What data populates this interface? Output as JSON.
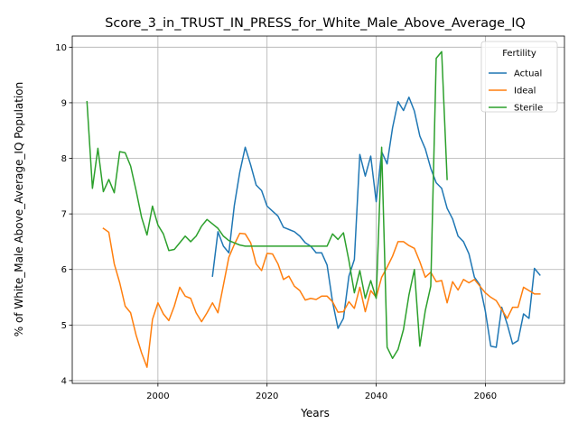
{
  "chart_data": {
    "type": "line",
    "title": "Score_3_in_TRUST_IN_PRESS_for_White_Male_Above_Average_IQ",
    "xlabel": "Years",
    "ylabel": "% of White_Male Above_Average_IQ Population",
    "xlim": [
      2084.5,
      2074.5
    ],
    "ylim": [
      3.95,
      10.2
    ],
    "xlim_note": "",
    "x_range": [
      1984.3,
      2074.5
    ],
    "xticks": [
      2000,
      2020,
      2040,
      2060
    ],
    "yticks": [
      4,
      5,
      6,
      7,
      8,
      9,
      10
    ],
    "grid": true,
    "legend": {
      "title": "Fertility",
      "position": "top-right"
    },
    "series": [
      {
        "name": "Actual",
        "color": "#1f77b4",
        "x": [
          2010,
          2011,
          2012,
          2013,
          2014,
          2015,
          2016,
          2017,
          2018,
          2019,
          2020,
          2021,
          2022,
          2023,
          2024,
          2025,
          2026,
          2027,
          2028,
          2029,
          2030,
          2031,
          2032,
          2033,
          2034,
          2035,
          2036,
          2037,
          2038,
          2039,
          2040,
          2041,
          2042,
          2043,
          2044,
          2045,
          2046,
          2047,
          2048,
          2049,
          2050,
          2051,
          2052,
          2053,
          2054,
          2055,
          2056,
          2057,
          2058,
          2059,
          2060,
          2061,
          2062,
          2063,
          2064,
          2065,
          2066,
          2067,
          2068,
          2069,
          2070
        ],
        "y": [
          5.88,
          6.68,
          6.42,
          6.3,
          7.15,
          7.75,
          8.2,
          7.88,
          7.52,
          7.42,
          7.14,
          7.05,
          6.96,
          6.76,
          6.72,
          6.68,
          6.6,
          6.48,
          6.42,
          6.3,
          6.3,
          6.08,
          5.42,
          4.94,
          5.12,
          5.88,
          6.18,
          8.07,
          7.68,
          8.04,
          7.22,
          8.12,
          7.9,
          8.55,
          9.02,
          8.86,
          9.1,
          8.85,
          8.4,
          8.17,
          7.82,
          7.56,
          7.46,
          7.1,
          6.91,
          6.6,
          6.5,
          6.28,
          5.86,
          5.72,
          5.25,
          4.62,
          4.6,
          5.32,
          5.02,
          4.66,
          4.72,
          5.2,
          5.12,
          6.02,
          5.9
        ]
      },
      {
        "name": "Ideal",
        "color": "#ff7f0e",
        "x": [
          1990,
          1991,
          1992,
          1993,
          1994,
          1995,
          1996,
          1997,
          1998,
          1999,
          2000,
          2001,
          2002,
          2003,
          2004,
          2005,
          2006,
          2007,
          2008,
          2009,
          2010,
          2011,
          2012,
          2013,
          2014,
          2015,
          2016,
          2017,
          2018,
          2019,
          2020,
          2021,
          2022,
          2023,
          2024,
          2025,
          2026,
          2027,
          2028,
          2029,
          2030,
          2031,
          2032,
          2033,
          2034,
          2035,
          2036,
          2037,
          2038,
          2039,
          2040,
          2041,
          2042,
          2043,
          2044,
          2045,
          2046,
          2047,
          2048,
          2049,
          2050,
          2051,
          2052,
          2053,
          2054,
          2055,
          2056,
          2057,
          2058,
          2059,
          2060,
          2061,
          2062,
          2063,
          2064,
          2065,
          2066,
          2067,
          2068,
          2069,
          2070
        ],
        "y": [
          6.74,
          6.67,
          6.1,
          5.76,
          5.34,
          5.22,
          4.82,
          4.5,
          4.24,
          5.1,
          5.4,
          5.2,
          5.08,
          5.34,
          5.68,
          5.52,
          5.48,
          5.22,
          5.06,
          5.22,
          5.4,
          5.22,
          5.72,
          6.22,
          6.45,
          6.65,
          6.64,
          6.48,
          6.1,
          5.98,
          6.29,
          6.28,
          6.1,
          5.82,
          5.88,
          5.7,
          5.62,
          5.45,
          5.48,
          5.46,
          5.52,
          5.52,
          5.42,
          5.23,
          5.24,
          5.42,
          5.3,
          5.68,
          5.24,
          5.62,
          5.5,
          5.86,
          6.04,
          6.24,
          6.5,
          6.5,
          6.43,
          6.38,
          6.14,
          5.86,
          5.95,
          5.78,
          5.8,
          5.4,
          5.78,
          5.63,
          5.82,
          5.76,
          5.82,
          5.7,
          5.58,
          5.5,
          5.44,
          5.28,
          5.12,
          5.32,
          5.32,
          5.68,
          5.62,
          5.56,
          5.56
        ]
      },
      {
        "name": "Sterile",
        "color": "#2ca02c",
        "x": [
          1987,
          1988,
          1989,
          1990,
          1991,
          1992,
          1993,
          1994,
          1995,
          1996,
          1997,
          1998,
          1999,
          2000,
          2001,
          2002,
          2003,
          2004,
          2005,
          2006,
          2007,
          2008,
          2009,
          2010,
          2011,
          2012,
          2013,
          2014,
          2015,
          2016,
          2017,
          2018,
          2019,
          2020,
          2021,
          2022,
          2023,
          2024,
          2025,
          2026,
          2027,
          2028,
          2029,
          2030,
          2031,
          2032,
          2033,
          2034,
          2035,
          2036,
          2037,
          2038,
          2039,
          2040,
          2041,
          2042,
          2043,
          2044,
          2045,
          2046,
          2047,
          2048,
          2049,
          2050,
          2051,
          2052,
          2053
        ],
        "y": [
          9.02,
          7.46,
          8.18,
          7.4,
          7.62,
          7.38,
          8.12,
          8.1,
          7.86,
          7.42,
          6.94,
          6.62,
          7.14,
          6.8,
          6.64,
          6.34,
          6.36,
          6.48,
          6.6,
          6.5,
          6.6,
          6.78,
          6.9,
          6.82,
          6.74,
          6.6,
          6.52,
          6.48,
          6.44,
          6.42,
          6.42,
          6.42,
          6.42,
          6.42,
          6.42,
          6.42,
          6.42,
          6.42,
          6.42,
          6.42,
          6.42,
          6.42,
          6.42,
          6.42,
          6.42,
          6.64,
          6.54,
          6.66,
          6.16,
          5.58,
          5.98,
          5.48,
          5.8,
          5.48,
          8.2,
          4.6,
          4.4,
          4.56,
          4.92,
          5.54,
          6.0,
          4.62,
          5.26,
          5.7,
          9.8,
          9.92,
          7.62
        ]
      }
    ]
  }
}
